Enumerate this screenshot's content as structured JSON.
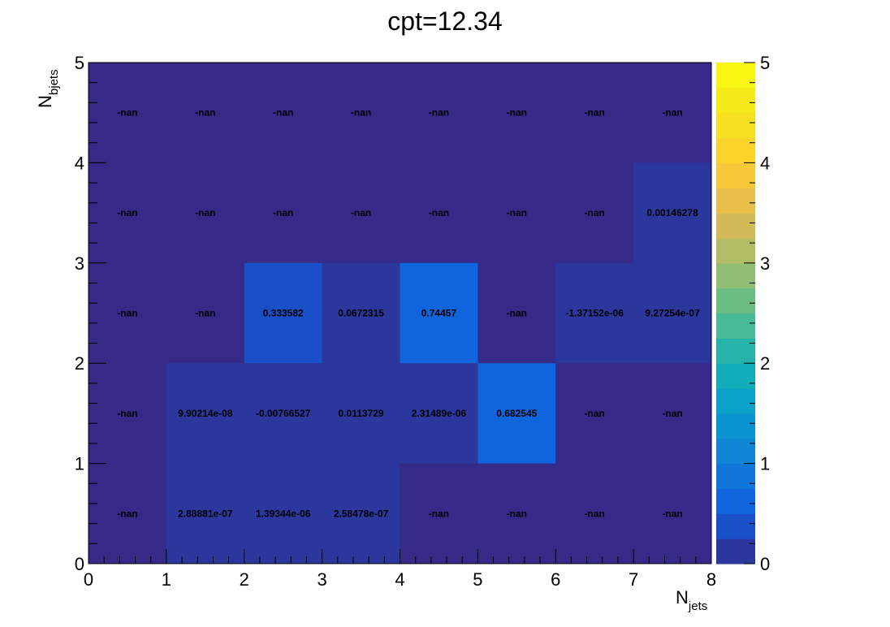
{
  "chart_data": {
    "type": "heatmap",
    "title": "cpt=12.34",
    "xlabel": {
      "main": "N",
      "sub": "jets"
    },
    "ylabel": {
      "main": "N",
      "sub": "bjets"
    },
    "x_bins": [
      0,
      1,
      2,
      3,
      4,
      5,
      6,
      7,
      8
    ],
    "y_bins": [
      0,
      1,
      2,
      3,
      4,
      5
    ],
    "xlim": [
      0,
      8
    ],
    "ylim": [
      0,
      5
    ],
    "zlim": [
      0,
      5
    ],
    "x_ticks": [
      "0",
      "1",
      "2",
      "3",
      "4",
      "5",
      "6",
      "7",
      "8"
    ],
    "y_ticks": [
      "0",
      "1",
      "2",
      "3",
      "4",
      "5"
    ],
    "z_ticks": [
      "0",
      "1",
      "2",
      "3",
      "4",
      "5"
    ],
    "colormap": "parula",
    "background_color": "#352a87",
    "rows": [
      [
        "-nan",
        "2.88881e-07",
        "1.39344e-06",
        "2.58478e-07",
        "-nan",
        "-nan",
        "-nan",
        "-nan"
      ],
      [
        "-nan",
        "9.90214e-08",
        "-0.00766527",
        "0.0113729",
        "2.31489e-06",
        "0.682545",
        "-nan",
        "-nan"
      ],
      [
        "-nan",
        "-nan",
        "0.333582",
        "0.0672315",
        "0.74457",
        "-nan",
        "-1.37152e-06",
        "9.27254e-07"
      ],
      [
        "-nan",
        "-nan",
        "-nan",
        "-nan",
        "-nan",
        "-nan",
        "-nan",
        "0.00146278"
      ],
      [
        "-nan",
        "-nan",
        "-nan",
        "-nan",
        "-nan",
        "-nan",
        "-nan",
        "-nan"
      ]
    ]
  }
}
